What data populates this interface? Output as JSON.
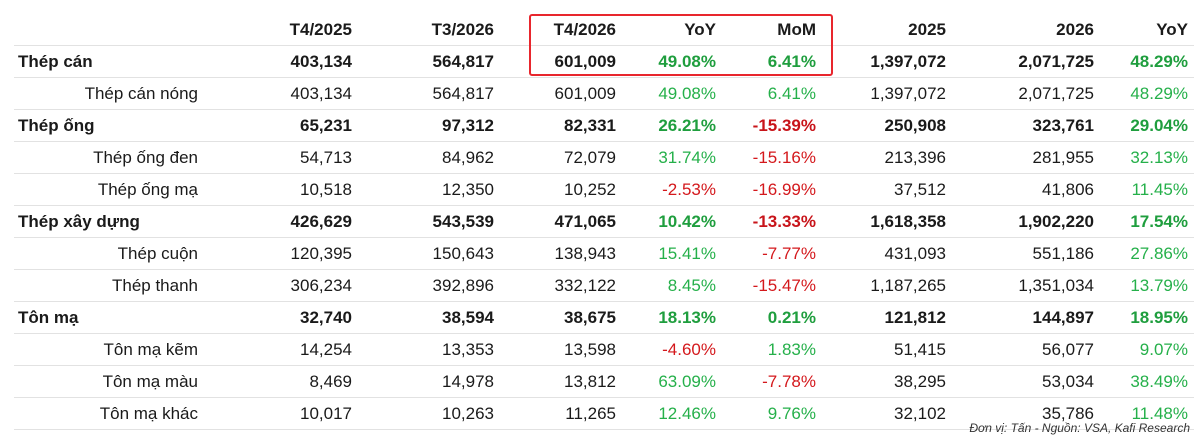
{
  "table": {
    "headers": [
      "",
      "T4/2025",
      "T3/2026",
      "T4/2026",
      "YoY",
      "MoM",
      "2025",
      "2026",
      "YoY"
    ],
    "rows": [
      {
        "type": "group",
        "cells": [
          "Thép cán",
          "403,134",
          "564,817",
          "601,009",
          "49.08%",
          "6.41%",
          "1,397,072",
          "2,071,725",
          "48.29%"
        ],
        "signs": [
          "",
          "",
          "",
          "",
          "pos",
          "pos",
          "",
          "",
          "pos"
        ]
      },
      {
        "type": "sub",
        "cells": [
          "Thép cán nóng",
          "403,134",
          "564,817",
          "601,009",
          "49.08%",
          "6.41%",
          "1,397,072",
          "2,071,725",
          "48.29%"
        ],
        "signs": [
          "",
          "",
          "",
          "",
          "pos",
          "pos",
          "",
          "",
          "pos"
        ]
      },
      {
        "type": "group",
        "cells": [
          "Thép ống",
          "65,231",
          "97,312",
          "82,331",
          "26.21%",
          "-15.39%",
          "250,908",
          "323,761",
          "29.04%"
        ],
        "signs": [
          "",
          "",
          "",
          "",
          "pos",
          "neg",
          "",
          "",
          "pos"
        ]
      },
      {
        "type": "sub",
        "cells": [
          "Thép ống đen",
          "54,713",
          "84,962",
          "72,079",
          "31.74%",
          "-15.16%",
          "213,396",
          "281,955",
          "32.13%"
        ],
        "signs": [
          "",
          "",
          "",
          "",
          "pos",
          "neg",
          "",
          "",
          "pos"
        ]
      },
      {
        "type": "sub",
        "cells": [
          "Thép ống mạ",
          "10,518",
          "12,350",
          "10,252",
          "-2.53%",
          "-16.99%",
          "37,512",
          "41,806",
          "11.45%"
        ],
        "signs": [
          "",
          "",
          "",
          "",
          "neg",
          "neg",
          "",
          "",
          "pos"
        ]
      },
      {
        "type": "group",
        "cells": [
          "Thép xây dựng",
          "426,629",
          "543,539",
          "471,065",
          "10.42%",
          "-13.33%",
          "1,618,358",
          "1,902,220",
          "17.54%"
        ],
        "signs": [
          "",
          "",
          "",
          "",
          "pos",
          "neg",
          "",
          "",
          "pos"
        ]
      },
      {
        "type": "sub",
        "cells": [
          "Thép cuộn",
          "120,395",
          "150,643",
          "138,943",
          "15.41%",
          "-7.77%",
          "431,093",
          "551,186",
          "27.86%"
        ],
        "signs": [
          "",
          "",
          "",
          "",
          "pos",
          "neg",
          "",
          "",
          "pos"
        ]
      },
      {
        "type": "sub",
        "cells": [
          "Thép thanh",
          "306,234",
          "392,896",
          "332,122",
          "8.45%",
          "-15.47%",
          "1,187,265",
          "1,351,034",
          "13.79%"
        ],
        "signs": [
          "",
          "",
          "",
          "",
          "pos",
          "neg",
          "",
          "",
          "pos"
        ]
      },
      {
        "type": "group",
        "cells": [
          "Tôn mạ",
          "32,740",
          "38,594",
          "38,675",
          "18.13%",
          "0.21%",
          "121,812",
          "144,897",
          "18.95%"
        ],
        "signs": [
          "",
          "",
          "",
          "",
          "pos",
          "pos",
          "",
          "",
          "pos"
        ]
      },
      {
        "type": "sub",
        "cells": [
          "Tôn mạ kẽm",
          "14,254",
          "13,353",
          "13,598",
          "-4.60%",
          "1.83%",
          "51,415",
          "56,077",
          "9.07%"
        ],
        "signs": [
          "",
          "",
          "",
          "",
          "neg",
          "pos",
          "",
          "",
          "pos"
        ]
      },
      {
        "type": "sub",
        "cells": [
          "Tôn mạ màu",
          "8,469",
          "14,978",
          "13,812",
          "63.09%",
          "-7.78%",
          "38,295",
          "53,034",
          "38.49%"
        ],
        "signs": [
          "",
          "",
          "",
          "",
          "pos",
          "neg",
          "",
          "",
          "pos"
        ]
      },
      {
        "type": "sub",
        "cells": [
          "Tôn mạ khác",
          "10,017",
          "10,263",
          "11,265",
          "12.46%",
          "9.76%",
          "32,102",
          "35,786",
          "11.48%"
        ],
        "signs": [
          "",
          "",
          "",
          "",
          "pos",
          "pos",
          "",
          "",
          "pos"
        ]
      }
    ]
  },
  "source_note": "Đơn vị: Tấn - Nguồn: VSA, Kafi Research",
  "colors": {
    "positive": "#25b04a",
    "negative": "#d4181c",
    "highlight_border": "#e8262d"
  }
}
